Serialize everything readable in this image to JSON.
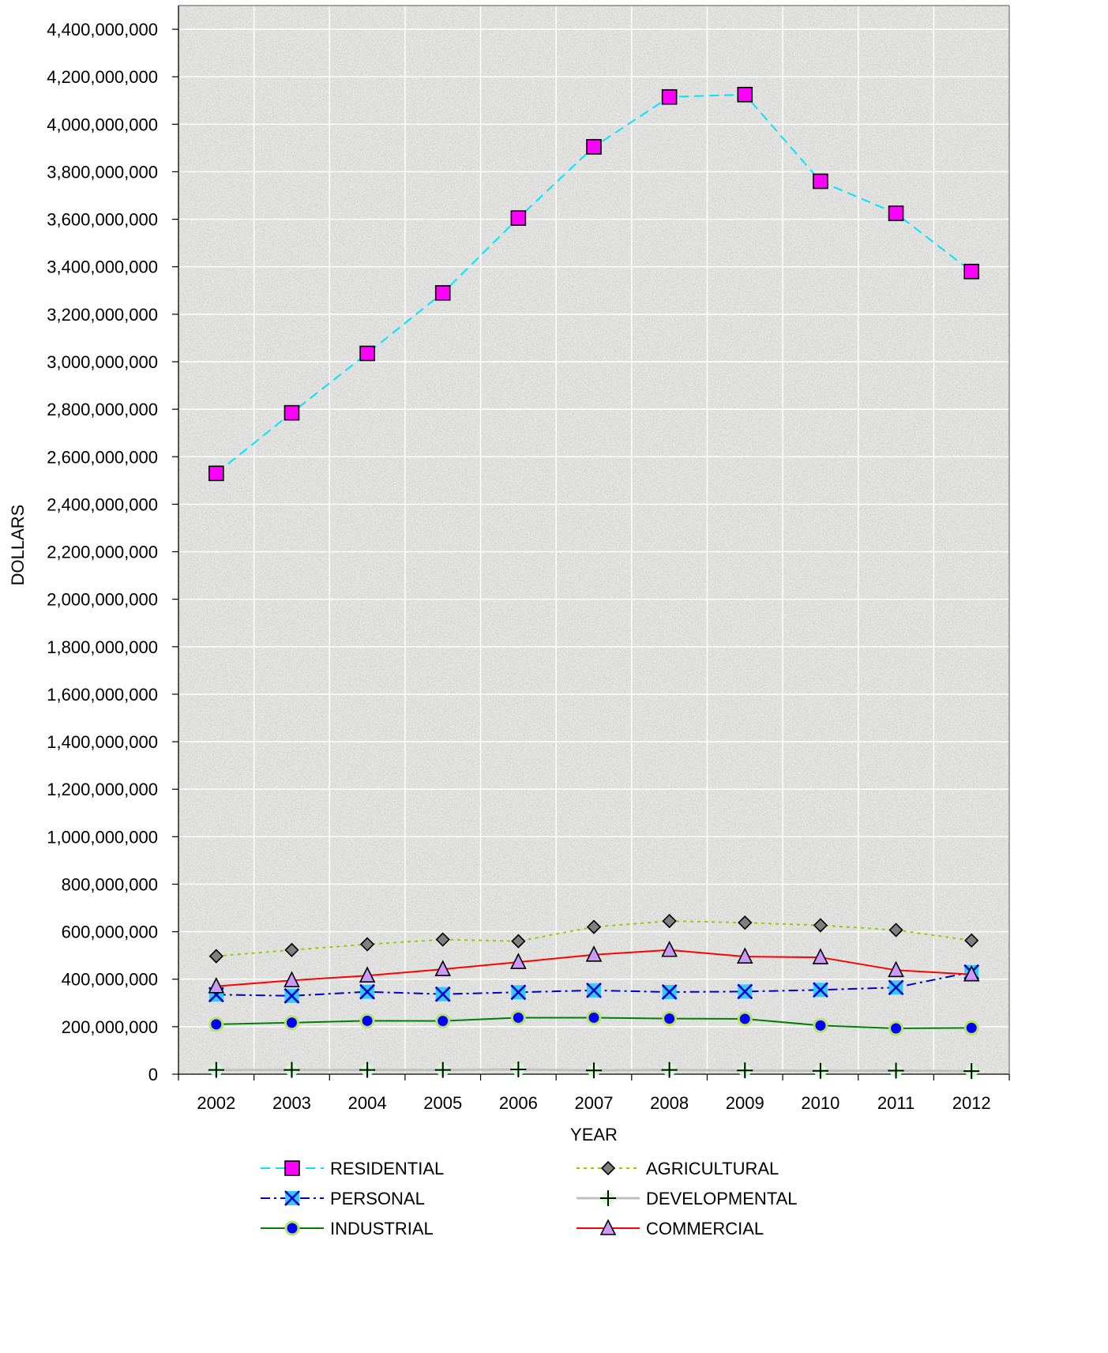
{
  "chart_data": {
    "type": "line",
    "title": "",
    "xlabel": "YEAR",
    "ylabel": "DOLLARS",
    "ylim": [
      0,
      4500000000
    ],
    "ytick_step": 200000000,
    "grid": true,
    "legend_position": "bottom",
    "categories": [
      "2002",
      "2003",
      "2004",
      "2005",
      "2006",
      "2007",
      "2008",
      "2009",
      "2010",
      "2011",
      "2012"
    ],
    "series": [
      {
        "name": "RESIDENTIAL",
        "color": "#00e5ff",
        "dash": "dashed",
        "marker": "square",
        "marker_fill": "#ff00ff",
        "values": [
          2530000000,
          2785000000,
          3035000000,
          3290000000,
          3605000000,
          3905000000,
          4115000000,
          4125000000,
          3760000000,
          3625000000,
          3380000000
        ]
      },
      {
        "name": "AGRICULTURAL",
        "color": "#99cc00",
        "dash": "dotted",
        "marker": "diamond",
        "marker_fill": "#808080",
        "values": [
          497000000,
          523000000,
          547000000,
          567000000,
          560000000,
          620000000,
          645000000,
          638000000,
          627000000,
          607000000,
          563000000
        ]
      },
      {
        "name": "PERSONAL",
        "color": "#0000cc",
        "dash": "dashdot",
        "marker": "x",
        "marker_fill": "#33ccff",
        "values": [
          335000000,
          330000000,
          347000000,
          337000000,
          345000000,
          353000000,
          346000000,
          348000000,
          355000000,
          365000000,
          430000000
        ]
      },
      {
        "name": "DEVELOPMENTAL",
        "color": "#c0c0c0",
        "dash": "solid",
        "marker": "plus",
        "marker_fill": "#ccffcc",
        "values": [
          18000000,
          18000000,
          18000000,
          18000000,
          20000000,
          16000000,
          18000000,
          16000000,
          14000000,
          15000000,
          13000000
        ]
      },
      {
        "name": "INDUSTRIAL",
        "color": "#008000",
        "dash": "solid",
        "marker": "circle",
        "marker_fill": "#0000ff",
        "values": [
          210000000,
          217000000,
          225000000,
          224000000,
          238000000,
          238000000,
          234000000,
          233000000,
          205000000,
          193000000,
          195000000
        ]
      },
      {
        "name": "COMMERCIAL",
        "color": "#ff0000",
        "dash": "solid",
        "marker": "triangle",
        "marker_fill": "#cc99ff",
        "values": [
          370000000,
          395000000,
          415000000,
          442000000,
          472000000,
          503000000,
          523000000,
          495000000,
          492000000,
          438000000,
          420000000
        ]
      }
    ]
  }
}
